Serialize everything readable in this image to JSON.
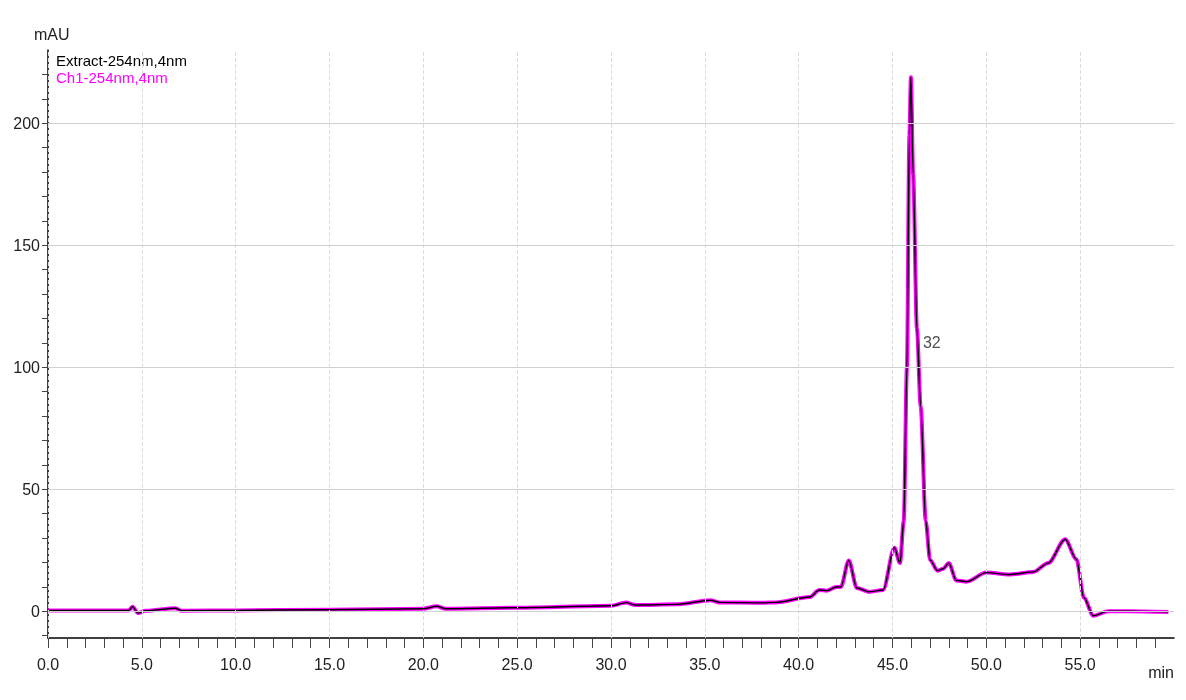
{
  "chart_data": {
    "type": "line",
    "xlabel": "min",
    "ylabel": "mAU",
    "legend": "top left",
    "grid": true,
    "marker": "none",
    "line_style": "solid",
    "x": [
      0,
      4.3,
      4.5,
      4.8,
      5.2,
      6.8,
      7.1,
      10,
      15,
      20,
      20.7,
      21.2,
      25,
      30,
      30.8,
      31.3,
      33.5,
      35.3,
      35.8,
      38,
      38.75,
      40.6,
      41.1,
      41.5,
      42.0,
      42.25,
      42.67,
      43.1,
      43.75,
      44.5,
      45.1,
      45.4,
      45.6,
      45.77,
      45.9,
      45.98,
      46.1,
      46.3,
      46.5,
      46.77,
      47.0,
      47.4,
      47.7,
      48.0,
      48.4,
      48.95,
      50.0,
      51.25,
      52.5,
      53.3,
      54.2,
      54.8,
      55.2,
      55.7,
      56.5,
      57.5,
      59.7
    ],
    "series": [
      {
        "name": "Ch1-254nm,4nm",
        "color": "#ff00ff",
        "values": [
          0.3,
          0.3,
          1.8,
          -0.8,
          0.2,
          1.2,
          0.2,
          0.3,
          0.6,
          1.0,
          2.0,
          1.0,
          1.4,
          2.2,
          3.5,
          2.5,
          2.8,
          4.5,
          3.6,
          3.4,
          3.6,
          5.8,
          8.7,
          8.4,
          9.9,
          9.9,
          20.8,
          9.5,
          7.9,
          8.7,
          26.0,
          19.7,
          37,
          100,
          195,
          218.8,
          179,
          116,
          84,
          37,
          21,
          16.6,
          17.4,
          19.7,
          12.6,
          12.1,
          15.8,
          15,
          16.1,
          19.7,
          29.5,
          21.3,
          5.5,
          -1.9,
          0,
          0,
          -0.3
        ]
      },
      {
        "name": "Extract-254nm,4nm",
        "color": "#000000",
        "values": [
          0.3,
          0.3,
          1.8,
          -0.8,
          0.2,
          1.2,
          0.2,
          0.3,
          0.6,
          1.0,
          2.0,
          1.0,
          1.4,
          2.2,
          3.5,
          2.5,
          2.8,
          4.5,
          3.6,
          3.4,
          3.6,
          5.8,
          8.7,
          8.4,
          9.9,
          9.9,
          20.8,
          9.5,
          7.9,
          8.7,
          26.0,
          19.7,
          37,
          100,
          195,
          218.8,
          179,
          116,
          84,
          37,
          21,
          16.6,
          17.4,
          19.7,
          12.6,
          12.1,
          15.8,
          15,
          16.1,
          19.7,
          29.5,
          21.3,
          5.5,
          -1.9,
          0,
          0,
          -0.3
        ]
      }
    ],
    "annotations": [
      {
        "text": "32",
        "x": 46.3,
        "y": 110
      }
    ],
    "xlim": [
      0,
      60
    ],
    "xticks": [
      {
        "value": 0,
        "label": "0.0"
      },
      {
        "value": 1,
        "label": null
      },
      {
        "value": 2,
        "label": null
      },
      {
        "value": 3,
        "label": null
      },
      {
        "value": 4,
        "label": null
      },
      {
        "value": 5,
        "label": "5.0"
      },
      {
        "value": 6,
        "label": null
      },
      {
        "value": 7,
        "label": null
      },
      {
        "value": 8,
        "label": null
      },
      {
        "value": 9,
        "label": null
      },
      {
        "value": 10,
        "label": "10.0"
      },
      {
        "value": 11,
        "label": null
      },
      {
        "value": 12,
        "label": null
      },
      {
        "value": 13,
        "label": null
      },
      {
        "value": 14,
        "label": null
      },
      {
        "value": 15,
        "label": "15.0"
      },
      {
        "value": 16,
        "label": null
      },
      {
        "value": 17,
        "label": null
      },
      {
        "value": 18,
        "label": null
      },
      {
        "value": 19,
        "label": null
      },
      {
        "value": 20,
        "label": "20.0"
      },
      {
        "value": 21,
        "label": null
      },
      {
        "value": 22,
        "label": null
      },
      {
        "value": 23,
        "label": null
      },
      {
        "value": 24,
        "label": null
      },
      {
        "value": 25,
        "label": "25.0"
      },
      {
        "value": 26,
        "label": null
      },
      {
        "value": 27,
        "label": null
      },
      {
        "value": 28,
        "label": null
      },
      {
        "value": 29,
        "label": null
      },
      {
        "value": 30,
        "label": "30.0"
      },
      {
        "value": 31,
        "label": null
      },
      {
        "value": 32,
        "label": null
      },
      {
        "value": 33,
        "label": null
      },
      {
        "value": 34,
        "label": null
      },
      {
        "value": 35,
        "label": "35.0"
      },
      {
        "value": 36,
        "label": null
      },
      {
        "value": 37,
        "label": null
      },
      {
        "value": 38,
        "label": null
      },
      {
        "value": 39,
        "label": null
      },
      {
        "value": 40,
        "label": "40.0"
      },
      {
        "value": 41,
        "label": null
      },
      {
        "value": 42,
        "label": null
      },
      {
        "value": 43,
        "label": null
      },
      {
        "value": 44,
        "label": null
      },
      {
        "value": 45,
        "label": "45.0"
      },
      {
        "value": 46,
        "label": null
      },
      {
        "value": 47,
        "label": null
      },
      {
        "value": 48,
        "label": null
      },
      {
        "value": 49,
        "label": null
      },
      {
        "value": 50,
        "label": "50.0"
      },
      {
        "value": 51,
        "label": null
      },
      {
        "value": 52,
        "label": null
      },
      {
        "value": 53,
        "label": null
      },
      {
        "value": 54,
        "label": null
      },
      {
        "value": 55,
        "label": "55.0"
      },
      {
        "value": 56,
        "label": null
      },
      {
        "value": 57,
        "label": null
      },
      {
        "value": 58,
        "label": null
      },
      {
        "value": 59,
        "label": null
      }
    ],
    "ylim": [
      -11,
      230
    ],
    "yticks": [
      {
        "value": -10,
        "label": null
      },
      0,
      {
        "value": 10,
        "label": null
      },
      {
        "value": 20,
        "label": null
      },
      {
        "value": 30,
        "label": null
      },
      {
        "value": 40,
        "label": null
      },
      50,
      {
        "value": 60,
        "label": null
      },
      {
        "value": 70,
        "label": null
      },
      {
        "value": 80,
        "label": null
      },
      {
        "value": 90,
        "label": null
      },
      100,
      {
        "value": 110,
        "label": null
      },
      {
        "value": 120,
        "label": null
      },
      {
        "value": 130,
        "label": null
      },
      {
        "value": 140,
        "label": null
      },
      150,
      {
        "value": 160,
        "label": null
      },
      {
        "value": 170,
        "label": null
      },
      {
        "value": 180,
        "label": null
      },
      {
        "value": 190,
        "label": null
      },
      200,
      {
        "value": 210,
        "label": null
      },
      {
        "value": 220,
        "label": null
      }
    ]
  }
}
